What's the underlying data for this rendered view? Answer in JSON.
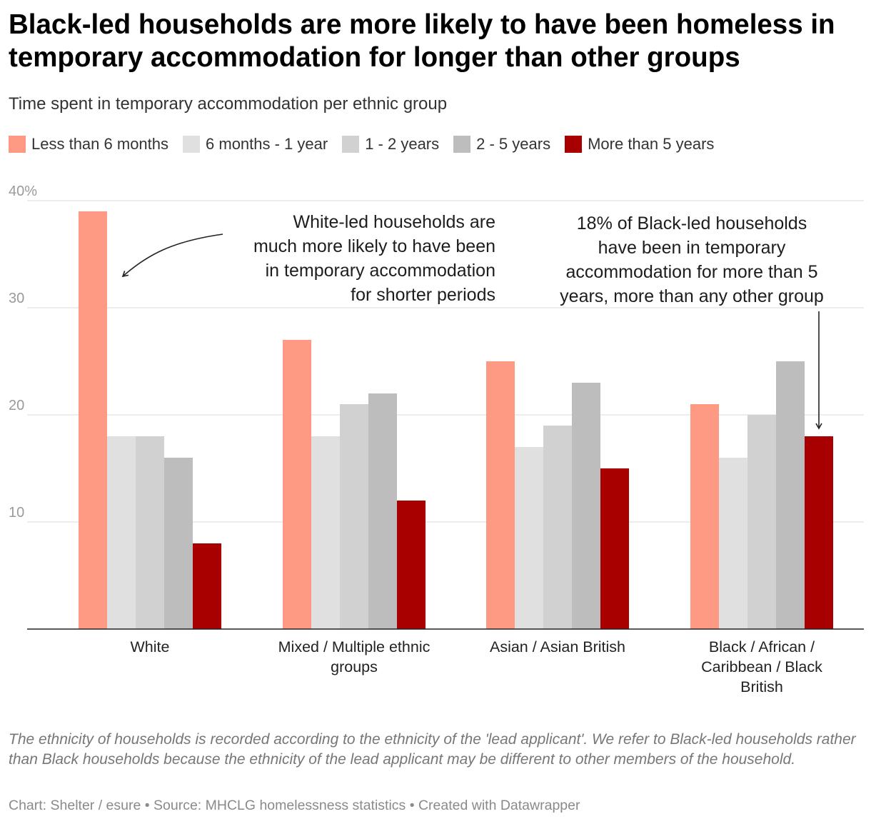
{
  "header": {
    "title": "Black-led households are more likely to have been homeless in temporary accommodation for longer than other groups",
    "subtitle": "Time spent in temporary accommodation per ethnic group"
  },
  "legend": [
    {
      "label": "Less than 6 months",
      "color": "#fe9a84"
    },
    {
      "label": "6 months - 1 year",
      "color": "#e0e0e0"
    },
    {
      "label": "1 - 2 years",
      "color": "#d1d1d1"
    },
    {
      "label": "2 - 5 years",
      "color": "#bdbdbd"
    },
    {
      "label": "More than 5 years",
      "color": "#a80000"
    }
  ],
  "chart_data": {
    "type": "bar",
    "title": "Black-led households are more likely to have been homeless in temporary accommodation for longer than other groups",
    "subtitle": "Time spent in temporary accommodation per ethnic group",
    "categories": [
      "White",
      "Mixed / Multiple ethnic groups",
      "Asian / Asian British",
      "Black / African / Caribbean / Black British"
    ],
    "category_label_lines": [
      [
        "White"
      ],
      [
        "Mixed / Multiple ethnic",
        "groups"
      ],
      [
        "Asian / Asian British"
      ],
      [
        "Black / African /",
        "Caribbean / Black",
        "British"
      ]
    ],
    "series": [
      {
        "name": "Less than 6 months",
        "color": "#fe9a84",
        "values": [
          39,
          27,
          25,
          21
        ]
      },
      {
        "name": "6 months - 1 year",
        "color": "#e0e0e0",
        "values": [
          18,
          18,
          17,
          16
        ]
      },
      {
        "name": "1 - 2 years",
        "color": "#d1d1d1",
        "values": [
          18,
          21,
          19,
          20
        ]
      },
      {
        "name": "2 - 5 years",
        "color": "#bdbdbd",
        "values": [
          16,
          22,
          23,
          25
        ]
      },
      {
        "name": "More than 5 years",
        "color": "#a80000",
        "values": [
          8,
          12,
          15,
          18
        ]
      }
    ],
    "y_ticks": [
      10,
      20,
      30,
      40
    ],
    "y_tick_labels": [
      "10",
      "20",
      "30",
      "40%"
    ],
    "ylim": [
      0,
      40
    ],
    "grid": true,
    "legend_position": "top-left",
    "annotations": [
      {
        "id": "white",
        "lines": [
          "White-led households are",
          "much more likely to have been",
          "in temporary accommodation",
          "for shorter periods"
        ]
      },
      {
        "id": "black",
        "lines": [
          "18% of Black-led households",
          "have been in temporary",
          "accommodation for more than 5",
          "years, more than any other group"
        ]
      }
    ]
  },
  "footer": {
    "notes": "The ethnicity of households is recorded according to the ethnicity of the 'lead applicant'. We refer to Black-led households rather than Black households because the ethnicity of the lead applicant may be different to other members of the household.",
    "credit": "Chart: Shelter / esure • Source: MHCLG homelessness statistics • Created with Datawrapper"
  }
}
